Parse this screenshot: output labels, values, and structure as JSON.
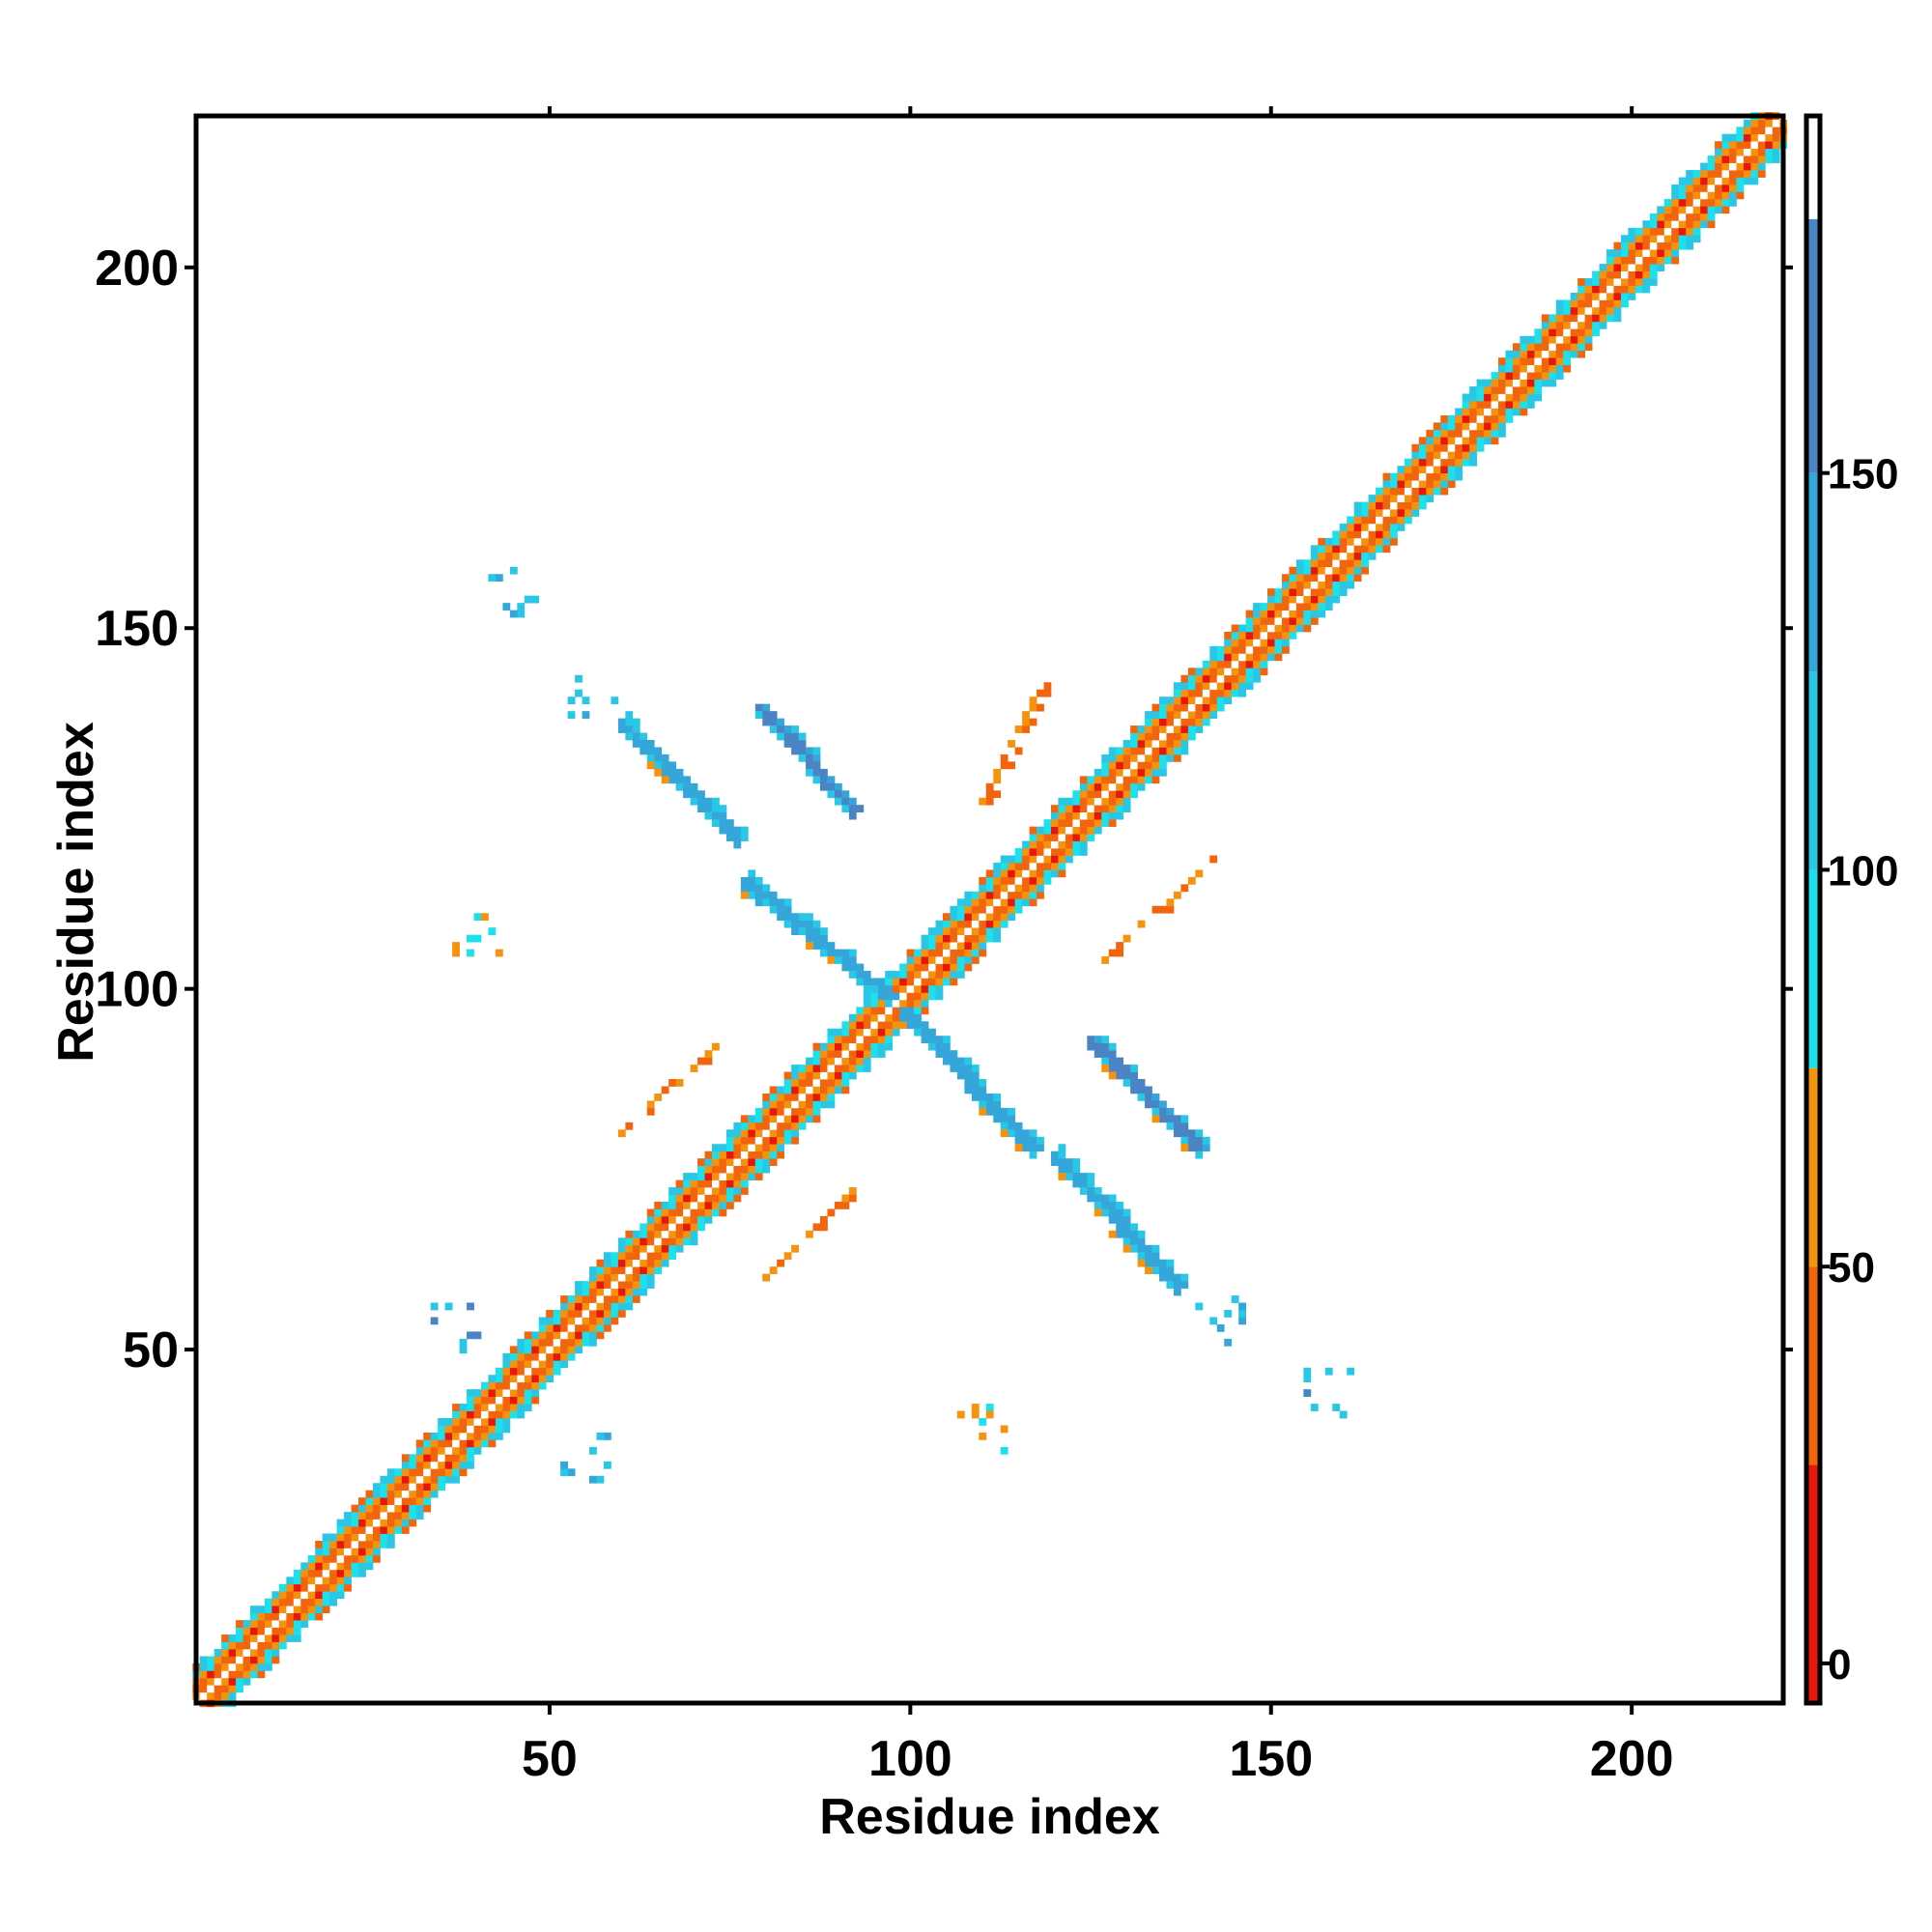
{
  "chart_data": {
    "type": "heatmap",
    "title": "",
    "xlabel": "Residue index",
    "ylabel": "Residue index",
    "xlim": [
      1,
      221
    ],
    "ylim": [
      1,
      221
    ],
    "x_ticks": [
      50,
      100,
      150,
      200
    ],
    "y_ticks": [
      50,
      100,
      150,
      200
    ],
    "colorbar": {
      "range": [
        -5,
        195
      ],
      "ticks": [
        0,
        50,
        100,
        150
      ],
      "bands": [
        {
          "from": -5,
          "to": 25,
          "color": "#e8170b"
        },
        {
          "from": 25,
          "to": 50,
          "color": "#f2650d"
        },
        {
          "from": 50,
          "to": 75,
          "color": "#f6930e"
        },
        {
          "from": 75,
          "to": 100,
          "color": "#1de0ea"
        },
        {
          "from": 100,
          "to": 125,
          "color": "#2ac6e6"
        },
        {
          "from": 125,
          "to": 150,
          "color": "#34a6da"
        },
        {
          "from": 150,
          "to": 182,
          "color": "#4a84c4"
        },
        {
          "from": 182,
          "to": 195,
          "color": "#ffffff"
        }
      ]
    },
    "features": [
      {
        "kind": "diagonal",
        "from": 1,
        "to": 221,
        "band_width": 5,
        "description_values": "main diagonal contact band"
      },
      {
        "kind": "antidiagonal_segment",
        "start": [
          60,
          137
        ],
        "end": [
          76,
          121
        ],
        "value": 130
      },
      {
        "kind": "antidiagonal_segment",
        "start": [
          79,
          139
        ],
        "end": [
          92,
          125
        ],
        "value": 150
      },
      {
        "kind": "antidiagonal_segment",
        "start": [
          77,
          115
        ],
        "end": [
          97,
          99
        ],
        "value": 140
      },
      {
        "kind": "antidiagonal_segment",
        "start": [
          99,
          97
        ],
        "end": [
          117,
          78
        ],
        "value": 140
      },
      {
        "kind": "antidiagonal_segment",
        "start": [
          125,
          93
        ],
        "end": [
          140,
          78
        ],
        "value": 150
      },
      {
        "kind": "antidiagonal_segment",
        "start": [
          120,
          77
        ],
        "end": [
          137,
          59
        ],
        "value": 130
      },
      {
        "kind": "parallel_segment",
        "start": [
          110,
          126
        ],
        "end": [
          118,
          142
        ],
        "value": 40
      },
      {
        "kind": "parallel_segment",
        "start": [
          127,
          104
        ],
        "end": [
          142,
          118
        ],
        "value": 40
      },
      {
        "kind": "parallel_segment",
        "start": [
          60,
          80
        ],
        "end": [
          74,
          93
        ],
        "value": 40
      },
      {
        "kind": "parallel_segment",
        "start": [
          80,
          60
        ],
        "end": [
          92,
          72
        ],
        "value": 40
      },
      {
        "kind": "scatter_patch",
        "center": [
          45,
          155
        ],
        "value": 110
      },
      {
        "kind": "scatter_patch",
        "center": [
          56,
          141
        ],
        "value": 110
      },
      {
        "kind": "scatter_patch",
        "center": [
          37,
          53
        ],
        "value": 120
      },
      {
        "kind": "scatter_patch",
        "center": [
          55,
          35
        ],
        "value": 110
      },
      {
        "kind": "scatter_patch",
        "center": [
          143,
          54
        ],
        "value": 110
      },
      {
        "kind": "scatter_patch",
        "center": [
          158,
          44
        ],
        "value": 120
      },
      {
        "kind": "scatter_patch",
        "center": [
          40,
          108
        ],
        "value": 50
      },
      {
        "kind": "scatter_patch",
        "center": [
          110,
          39
        ],
        "value": 50
      }
    ]
  }
}
